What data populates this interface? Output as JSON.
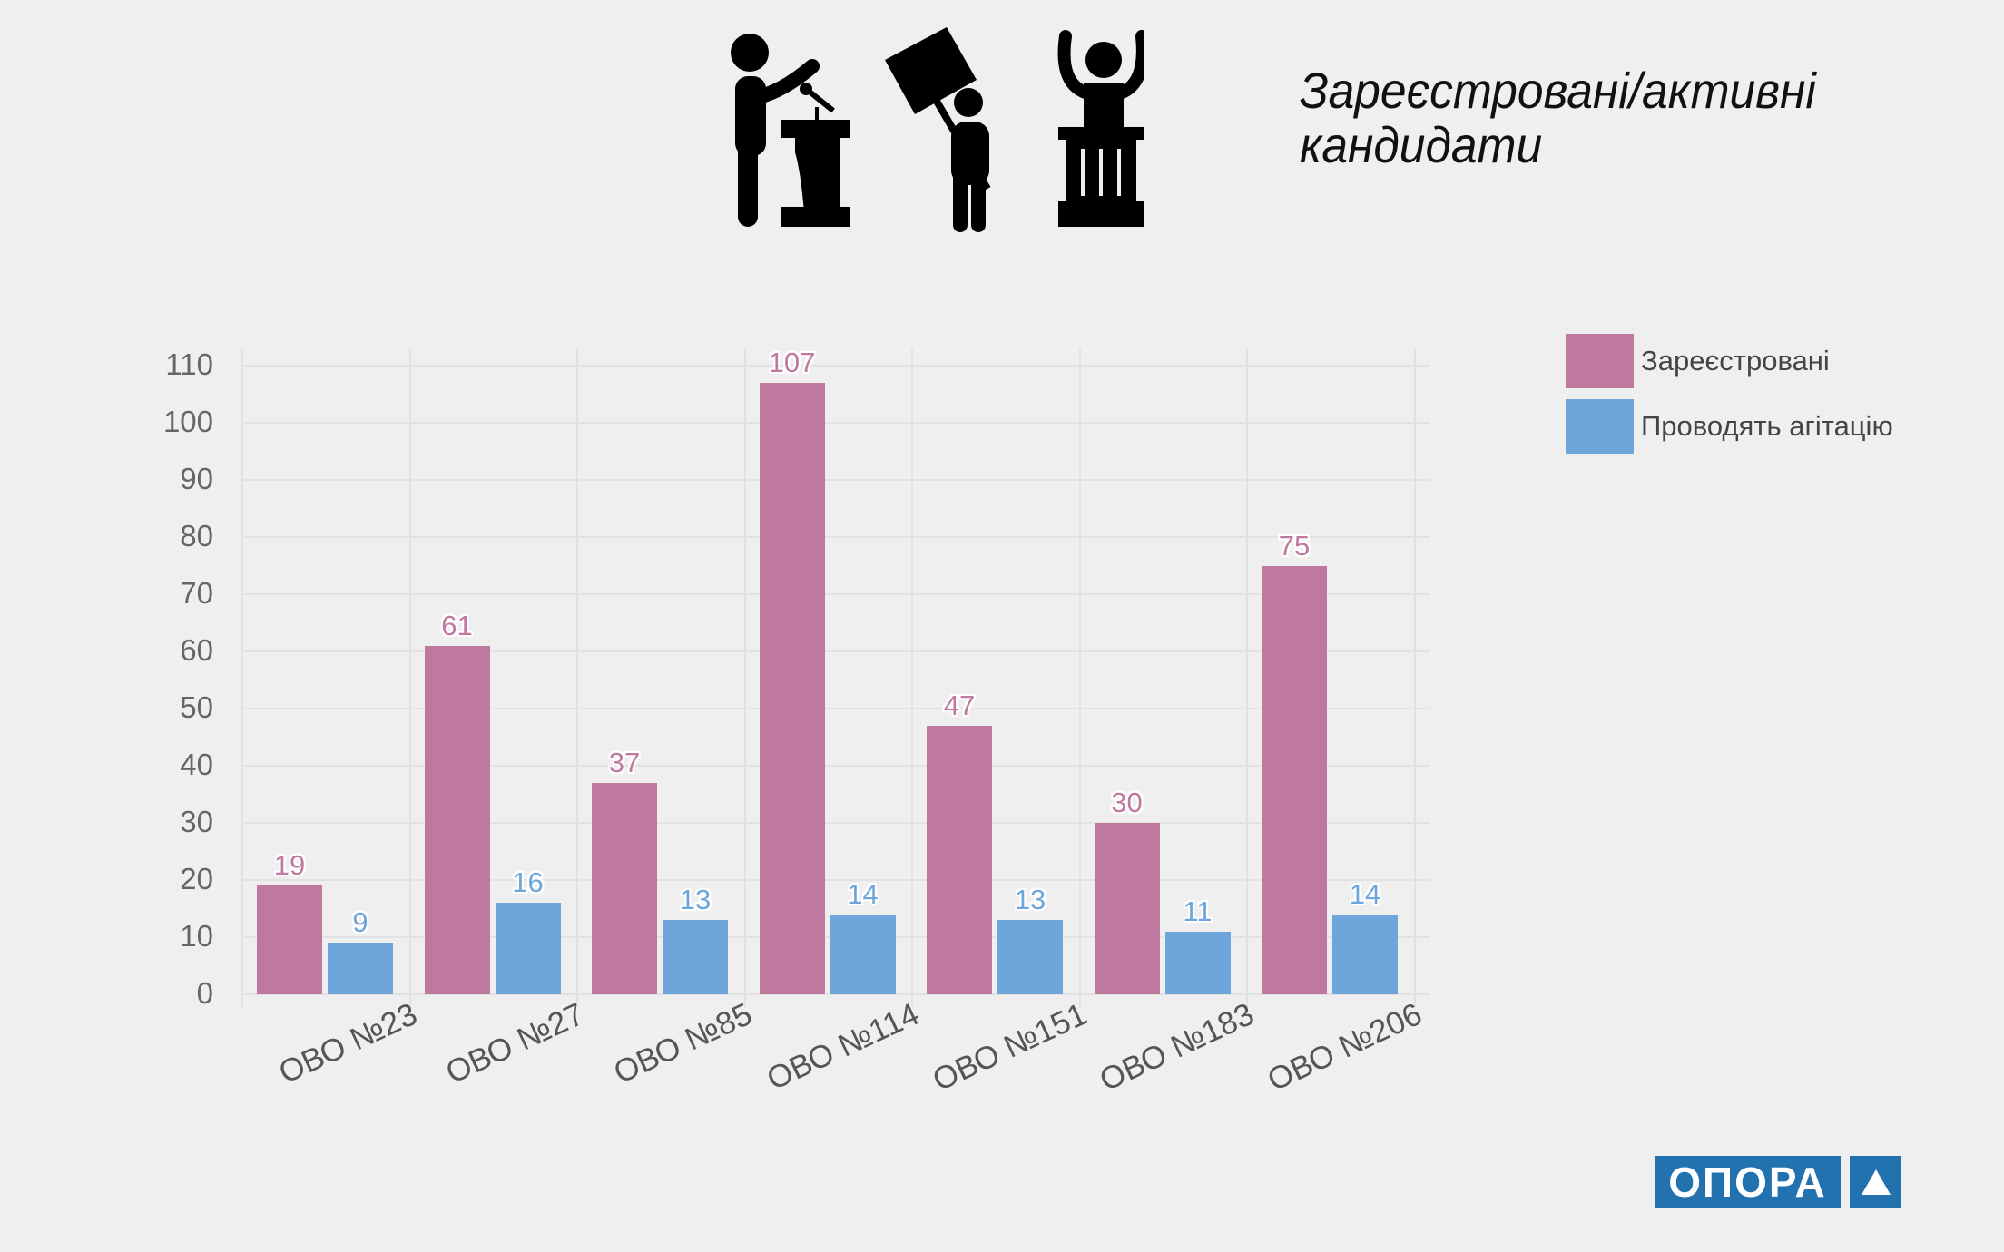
{
  "header": {
    "title_line1": "Зареєстровані/активні",
    "title_line2": "кандидати",
    "icons": [
      "speaker-at-podium-icon",
      "protester-with-sign-icon",
      "winner-at-rostrum-icon"
    ]
  },
  "legend": {
    "items": [
      {
        "label": "Зареєстровані",
        "color": "#c0799e"
      },
      {
        "label": "Проводять агітацію",
        "color": "#6ea6db"
      }
    ]
  },
  "axis": {
    "yticks": [
      "0",
      "10",
      "20",
      "30",
      "40",
      "50",
      "60",
      "70",
      "80",
      "90",
      "100",
      "110"
    ]
  },
  "logo": {
    "text": "ОПОРА",
    "color": "#2272b0"
  },
  "chart_data": {
    "type": "bar",
    "title": "Зареєстровані/активні кандидати",
    "xlabel": "",
    "ylabel": "",
    "ylim": [
      0,
      110
    ],
    "grid": true,
    "legend_position": "right-top",
    "categories": [
      "ОВО №23",
      "ОВО №27",
      "ОВО №85",
      "ОВО №114",
      "ОВО №151",
      "ОВО №183",
      "ОВО №206"
    ],
    "series": [
      {
        "name": "Зареєстровані",
        "color": "#c0799e",
        "values": [
          19,
          61,
          37,
          107,
          47,
          30,
          75
        ]
      },
      {
        "name": "Проводять агітацію",
        "color": "#6ea6db",
        "values": [
          9,
          16,
          13,
          14,
          13,
          11,
          14
        ]
      }
    ],
    "data_labels": true
  }
}
